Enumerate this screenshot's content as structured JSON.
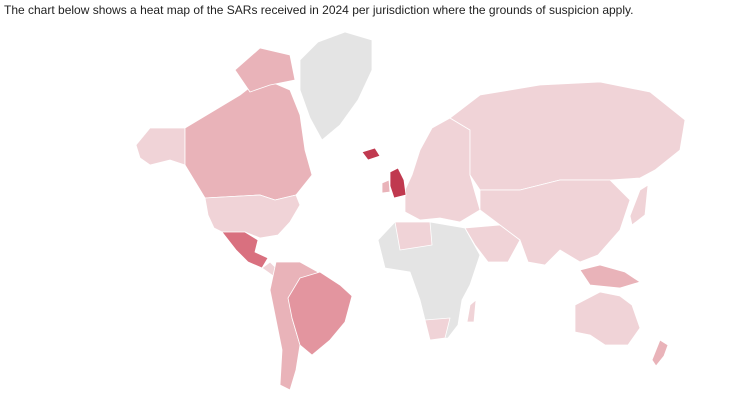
{
  "caption": "The chart below shows a heat map of the SARs received in 2024 per jurisdiction where the grounds of suspicion apply."
}
